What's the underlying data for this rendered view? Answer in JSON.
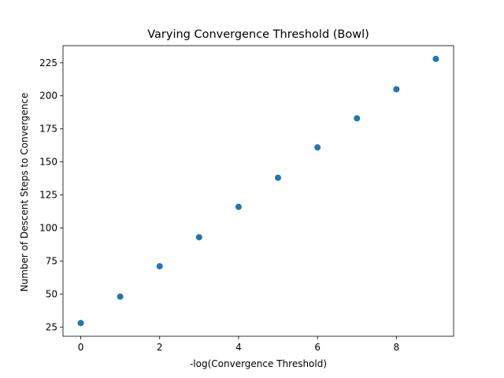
{
  "chart_data": {
    "type": "scatter",
    "title": "Varying Convergence Threshold (Bowl)",
    "xlabel": "-log(Convergence Threshold)",
    "ylabel": "Number of Descent Steps to Convergence",
    "x": [
      0,
      1,
      2,
      3,
      4,
      5,
      6,
      7,
      8,
      9
    ],
    "y": [
      28,
      48,
      71,
      93,
      116,
      138,
      161,
      183,
      205,
      228
    ],
    "xlim": [
      -0.45,
      9.45
    ],
    "ylim": [
      18,
      238
    ],
    "xticks": [
      0,
      2,
      4,
      6,
      8
    ],
    "yticks": [
      25,
      50,
      75,
      100,
      125,
      150,
      175,
      200,
      225
    ],
    "grid": false,
    "legend": "none",
    "marker_color": "#1f77b4"
  }
}
